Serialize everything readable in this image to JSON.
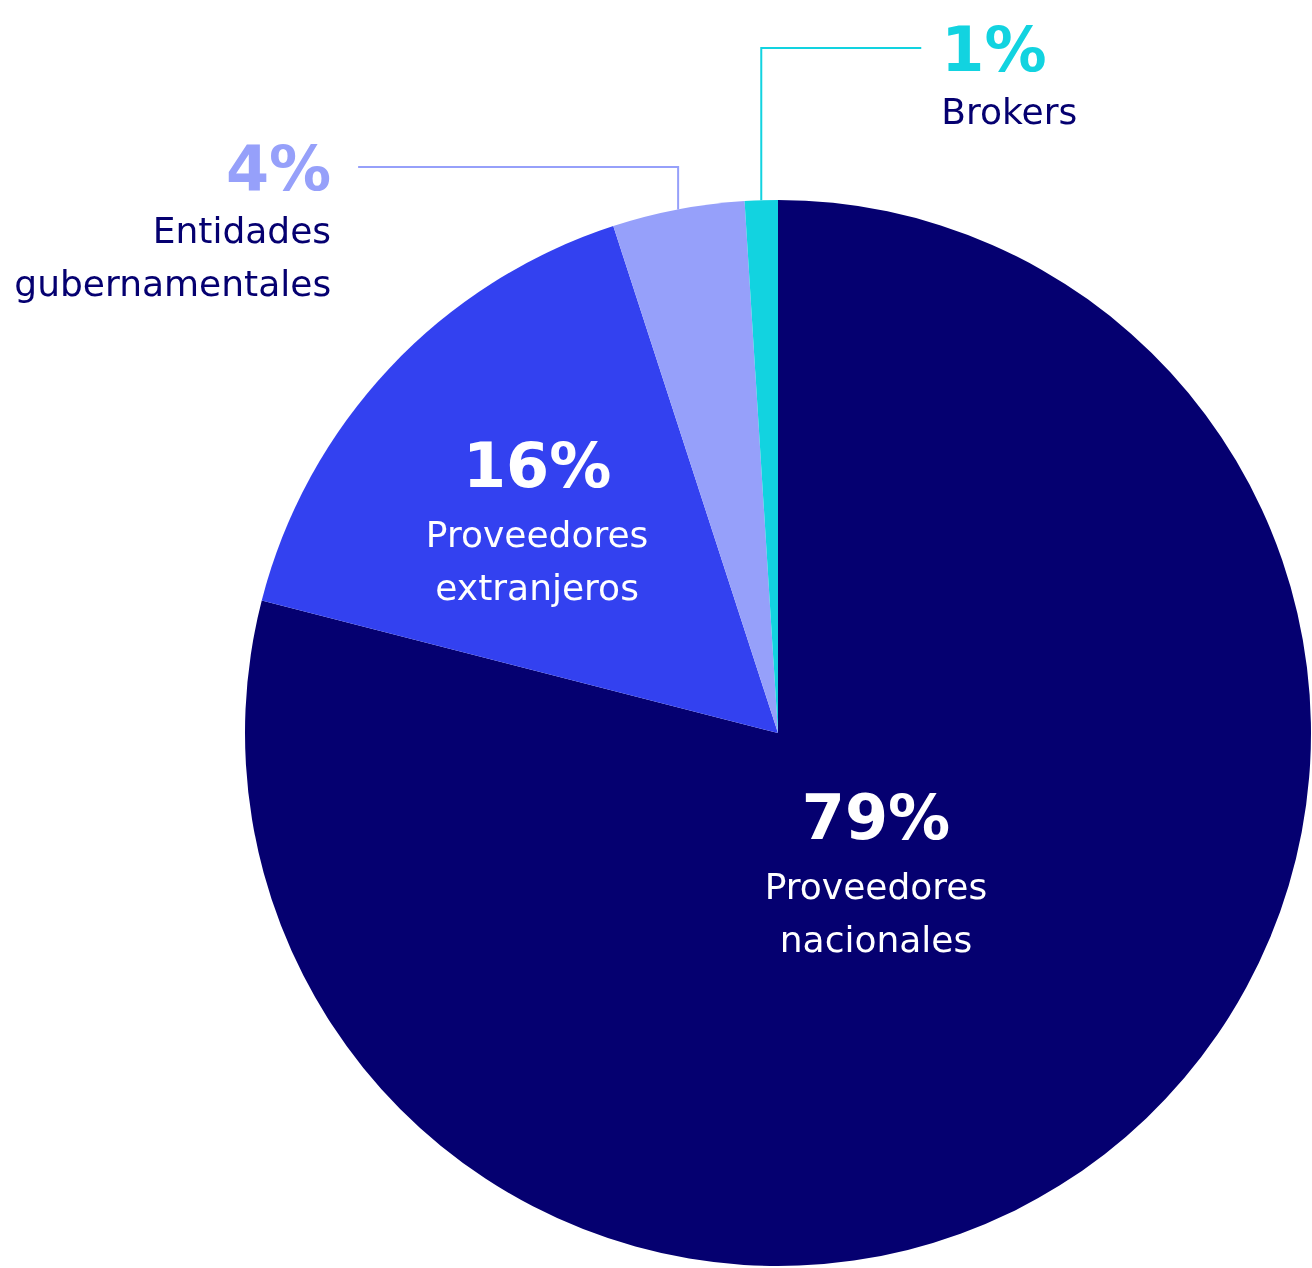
{
  "chart_data": {
    "type": "pie",
    "categories": [
      "Proveedores nacionales",
      "Proveedores extranjeros",
      "Entidades gubernamentales",
      "Brokers"
    ],
    "values": [
      79,
      16,
      4,
      1
    ],
    "colors": [
      "#050070",
      "#3341f0",
      "#96a0fa",
      "#12d3e0"
    ],
    "value_labels": [
      "79%",
      "16%",
      "4%",
      "1%"
    ]
  }
}
